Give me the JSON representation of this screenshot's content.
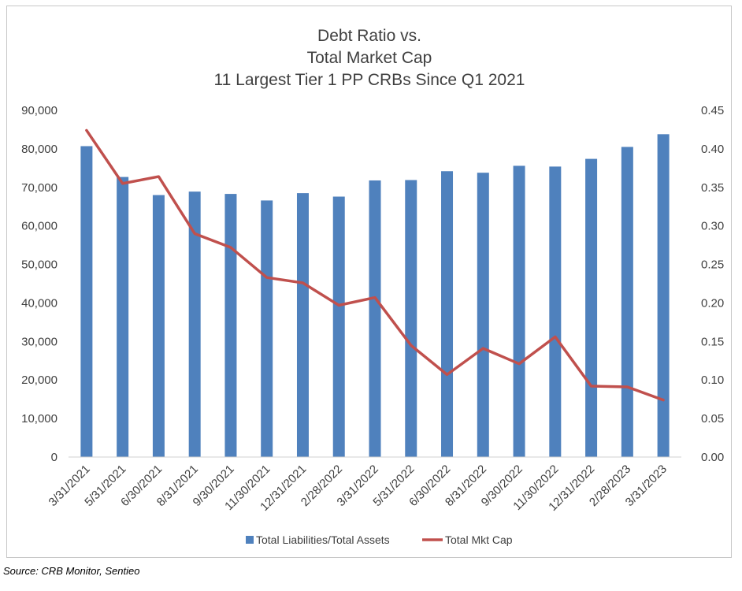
{
  "chart_data": {
    "type": "bar",
    "title_lines": [
      "Debt Ratio vs.",
      "Total Market Cap",
      "11 Largest Tier 1 PP CRBs Since Q1 2021"
    ],
    "categories": [
      "3/31/2021",
      "5/31/2021",
      "6/30/2021",
      "8/31/2021",
      "9/30/2021",
      "11/30/2021",
      "12/31/2021",
      "2/28/2022",
      "3/31/2022",
      "5/31/2022",
      "6/30/2022",
      "8/31/2022",
      "9/30/2022",
      "11/30/2022",
      "12/31/2022",
      "2/28/2023",
      "3/31/2023"
    ],
    "series": [
      {
        "name": "Total Liabilities/Total Assets",
        "type": "bar",
        "axis": "left",
        "color": "#4f81bd",
        "values": [
          80700,
          72700,
          68000,
          68900,
          68300,
          66600,
          68500,
          67600,
          71800,
          71900,
          74200,
          73800,
          75600,
          75400,
          77400,
          80500,
          83800
        ]
      },
      {
        "name": "Total Mkt Cap",
        "type": "line",
        "axis": "right",
        "color": "#c0504d",
        "values": [
          0.424,
          0.355,
          0.364,
          0.29,
          0.272,
          0.233,
          0.226,
          0.197,
          0.207,
          0.145,
          0.107,
          0.141,
          0.121,
          0.156,
          0.092,
          0.091,
          0.074
        ]
      }
    ],
    "y_left": {
      "min": 0,
      "max": 90000,
      "step": 10000,
      "tick_labels": [
        "0",
        "10,000",
        "20,000",
        "30,000",
        "40,000",
        "50,000",
        "60,000",
        "70,000",
        "80,000",
        "90,000"
      ]
    },
    "y_right": {
      "min": 0,
      "max": 0.45,
      "step": 0.05,
      "tick_labels": [
        "0.00",
        "0.05",
        "0.10",
        "0.15",
        "0.20",
        "0.25",
        "0.30",
        "0.35",
        "0.40",
        "0.45"
      ]
    },
    "grid": false,
    "legend_position": "bottom"
  },
  "source_note": "Source: CRB Monitor, Sentieo"
}
